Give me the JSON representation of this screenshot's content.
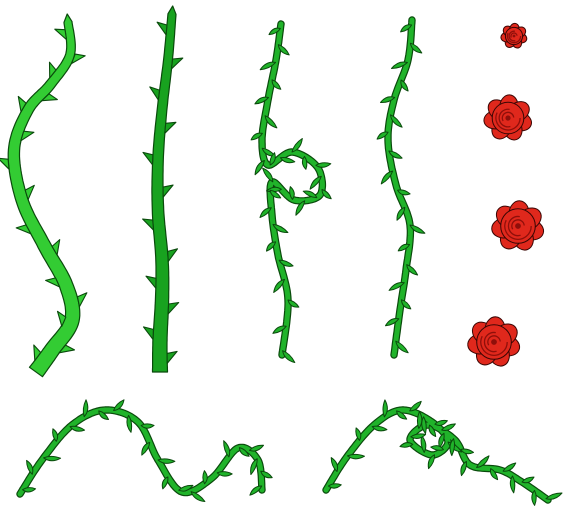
{
  "colors": {
    "background": "#ffffff",
    "vine_light": "#33cc33",
    "vine_dark": "#18a21f",
    "leaf": "#20b32a",
    "outline": "#0a4a0c",
    "rose": "#e0281c",
    "rose_dark": "#8f0f0a",
    "rose_outline": "#3a0604"
  },
  "assets": [
    {
      "id": "thorny-stem-light",
      "kind": "thorny-stem"
    },
    {
      "id": "thorny-stem-dark",
      "kind": "thorny-stem"
    },
    {
      "id": "leafy-vine-loop",
      "kind": "leafy-vine"
    },
    {
      "id": "leafy-vine-straight",
      "kind": "leafy-vine"
    },
    {
      "id": "rose-1",
      "kind": "rose"
    },
    {
      "id": "rose-2",
      "kind": "rose"
    },
    {
      "id": "rose-3",
      "kind": "rose"
    },
    {
      "id": "rose-4",
      "kind": "rose"
    },
    {
      "id": "leafy-vine-wave",
      "kind": "leafy-vine"
    },
    {
      "id": "leafy-vine-curl",
      "kind": "leafy-vine"
    }
  ]
}
